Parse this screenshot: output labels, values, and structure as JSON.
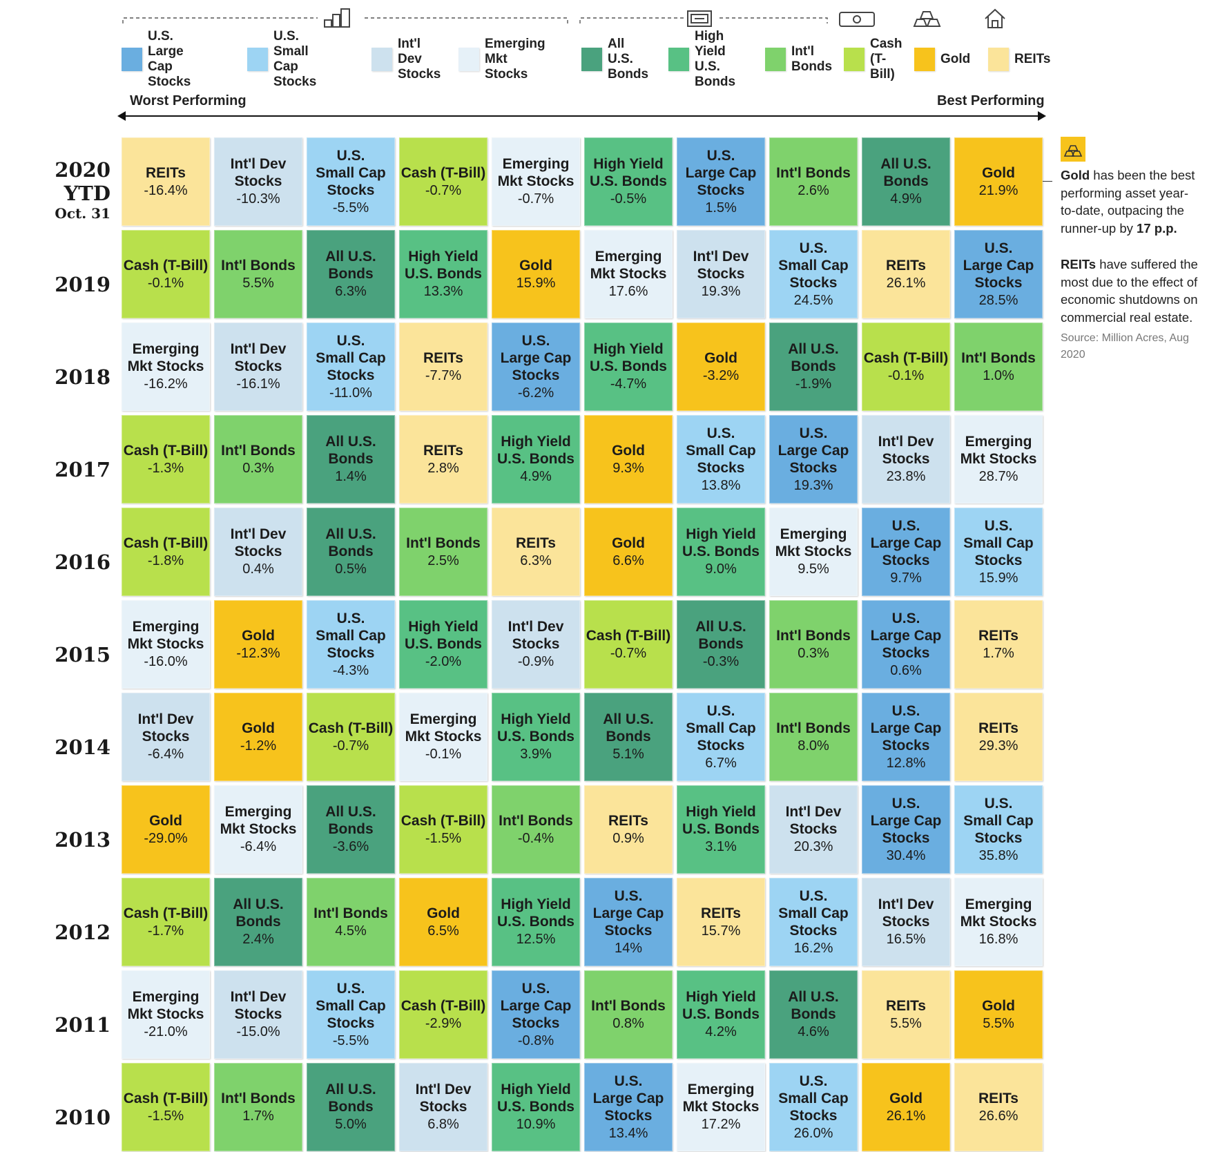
{
  "legend": [
    {
      "key": "uslarge",
      "label": "U.S. Large Cap\nStocks",
      "color": "#6aaee0"
    },
    {
      "key": "ussmall",
      "label": "U.S. Small Cap\nStocks",
      "color": "#9dd4f3"
    },
    {
      "key": "intldev",
      "label": "Int'l Dev\nStocks",
      "color": "#cde1ee"
    },
    {
      "key": "em",
      "label": "Emerging Mkt\nStocks",
      "color": "#e6f1f8"
    },
    {
      "key": "allbonds",
      "label": "All U.S.\nBonds",
      "color": "#4aa27e"
    },
    {
      "key": "hy",
      "label": "High Yield\nU.S. Bonds",
      "color": "#58c184"
    },
    {
      "key": "intlbonds",
      "label": "Int'l\nBonds",
      "color": "#7fd26c"
    },
    {
      "key": "cash",
      "label": "Cash\n(T-Bill)",
      "color": "#b8e04c"
    },
    {
      "key": "gold",
      "label": "Gold",
      "color": "#f7c31c"
    },
    {
      "key": "reits",
      "label": "REITs",
      "color": "#fbe49a"
    }
  ],
  "header": {
    "worst": "Worst Performing",
    "best": "Best Performing",
    "category_icons": [
      "bar-chart-icon",
      "bond-certificate-icon",
      "cash-bill-icon",
      "gold-bars-icon",
      "house-icon"
    ]
  },
  "chart_data": {
    "type": "table",
    "x_axis": {
      "worst": "Worst Performing",
      "best": "Best Performing"
    },
    "rows": [
      {
        "year": "2020 YTD",
        "subtitle": "Oct. 31",
        "cells": [
          {
            "asset": "reits",
            "name": "REITs",
            "value": "-16.4%"
          },
          {
            "asset": "intldev",
            "name": "Int'l Dev\nStocks",
            "value": "-10.3%"
          },
          {
            "asset": "ussmall",
            "name": "U.S.\nSmall Cap\nStocks",
            "value": "-5.5%"
          },
          {
            "asset": "cash",
            "name": "Cash (T-Bill)",
            "value": "-0.7%"
          },
          {
            "asset": "em",
            "name": "Emerging\nMkt Stocks",
            "value": "-0.7%"
          },
          {
            "asset": "hy",
            "name": "High Yield\nU.S. Bonds",
            "value": "-0.5%"
          },
          {
            "asset": "uslarge",
            "name": "U.S.\nLarge Cap\nStocks",
            "value": "1.5%"
          },
          {
            "asset": "intlbonds",
            "name": "Int'l Bonds",
            "value": "2.6%"
          },
          {
            "asset": "allbonds",
            "name": "All U.S.\nBonds",
            "value": "4.9%"
          },
          {
            "asset": "gold",
            "name": "Gold",
            "value": "21.9%"
          }
        ]
      },
      {
        "year": "2019",
        "subtitle": "",
        "cells": [
          {
            "asset": "cash",
            "name": "Cash (T-Bill)",
            "value": "-0.1%"
          },
          {
            "asset": "intlbonds",
            "name": "Int'l Bonds",
            "value": "5.5%"
          },
          {
            "asset": "allbonds",
            "name": "All U.S.\nBonds",
            "value": "6.3%"
          },
          {
            "asset": "hy",
            "name": "High Yield\nU.S. Bonds",
            "value": "13.3%"
          },
          {
            "asset": "gold",
            "name": "Gold",
            "value": "15.9%"
          },
          {
            "asset": "em",
            "name": "Emerging\nMkt Stocks",
            "value": "17.6%"
          },
          {
            "asset": "intldev",
            "name": "Int'l Dev\nStocks",
            "value": "19.3%"
          },
          {
            "asset": "ussmall",
            "name": "U.S.\nSmall Cap\nStocks",
            "value": "24.5%"
          },
          {
            "asset": "reits",
            "name": "REITs",
            "value": "26.1%"
          },
          {
            "asset": "uslarge",
            "name": "U.S.\nLarge Cap\nStocks",
            "value": "28.5%"
          }
        ]
      },
      {
        "year": "2018",
        "subtitle": "",
        "cells": [
          {
            "asset": "em",
            "name": "Emerging\nMkt Stocks",
            "value": "-16.2%"
          },
          {
            "asset": "intldev",
            "name": "Int'l Dev\nStocks",
            "value": "-16.1%"
          },
          {
            "asset": "ussmall",
            "name": "U.S.\nSmall Cap\nStocks",
            "value": "-11.0%"
          },
          {
            "asset": "reits",
            "name": "REITs",
            "value": "-7.7%"
          },
          {
            "asset": "uslarge",
            "name": "U.S.\nLarge Cap\nStocks",
            "value": "-6.2%"
          },
          {
            "asset": "hy",
            "name": "High Yield\nU.S. Bonds",
            "value": "-4.7%"
          },
          {
            "asset": "gold",
            "name": "Gold",
            "value": "-3.2%"
          },
          {
            "asset": "allbonds",
            "name": "All U.S.\nBonds",
            "value": "-1.9%"
          },
          {
            "asset": "cash",
            "name": "Cash (T-Bill)",
            "value": "-0.1%"
          },
          {
            "asset": "intlbonds",
            "name": "Int'l Bonds",
            "value": "1.0%"
          }
        ]
      },
      {
        "year": "2017",
        "subtitle": "",
        "cells": [
          {
            "asset": "cash",
            "name": "Cash (T-Bill)",
            "value": "-1.3%"
          },
          {
            "asset": "intlbonds",
            "name": "Int'l Bonds",
            "value": "0.3%"
          },
          {
            "asset": "allbonds",
            "name": "All U.S.\nBonds",
            "value": "1.4%"
          },
          {
            "asset": "reits",
            "name": "REITs",
            "value": "2.8%"
          },
          {
            "asset": "hy",
            "name": "High Yield\nU.S. Bonds",
            "value": "4.9%"
          },
          {
            "asset": "gold",
            "name": "Gold",
            "value": "9.3%"
          },
          {
            "asset": "ussmall",
            "name": "U.S.\nSmall Cap\nStocks",
            "value": "13.8%"
          },
          {
            "asset": "uslarge",
            "name": "U.S.\nLarge Cap\nStocks",
            "value": "19.3%"
          },
          {
            "asset": "intldev",
            "name": "Int'l Dev\nStocks",
            "value": "23.8%"
          },
          {
            "asset": "em",
            "name": "Emerging\nMkt Stocks",
            "value": "28.7%"
          }
        ]
      },
      {
        "year": "2016",
        "subtitle": "",
        "cells": [
          {
            "asset": "cash",
            "name": "Cash (T-Bill)",
            "value": "-1.8%"
          },
          {
            "asset": "intldev",
            "name": "Int'l Dev\nStocks",
            "value": "0.4%"
          },
          {
            "asset": "allbonds",
            "name": "All U.S.\nBonds",
            "value": "0.5%"
          },
          {
            "asset": "intlbonds",
            "name": "Int'l Bonds",
            "value": "2.5%"
          },
          {
            "asset": "reits",
            "name": "REITs",
            "value": "6.3%"
          },
          {
            "asset": "gold",
            "name": "Gold",
            "value": "6.6%"
          },
          {
            "asset": "hy",
            "name": "High Yield\nU.S. Bonds",
            "value": "9.0%"
          },
          {
            "asset": "em",
            "name": "Emerging\nMkt Stocks",
            "value": "9.5%"
          },
          {
            "asset": "uslarge",
            "name": "U.S.\nLarge Cap\nStocks",
            "value": "9.7%"
          },
          {
            "asset": "ussmall",
            "name": "U.S.\nSmall Cap\nStocks",
            "value": "15.9%"
          }
        ]
      },
      {
        "year": "2015",
        "subtitle": "",
        "cells": [
          {
            "asset": "em",
            "name": "Emerging\nMkt Stocks",
            "value": "-16.0%"
          },
          {
            "asset": "gold",
            "name": "Gold",
            "value": "-12.3%"
          },
          {
            "asset": "ussmall",
            "name": "U.S.\nSmall Cap\nStocks",
            "value": "-4.3%"
          },
          {
            "asset": "hy",
            "name": "High Yield\nU.S. Bonds",
            "value": "-2.0%"
          },
          {
            "asset": "intldev",
            "name": "Int'l Dev\nStocks",
            "value": "-0.9%"
          },
          {
            "asset": "cash",
            "name": "Cash (T-Bill)",
            "value": "-0.7%"
          },
          {
            "asset": "allbonds",
            "name": "All U.S.\nBonds",
            "value": "-0.3%"
          },
          {
            "asset": "intlbonds",
            "name": "Int'l Bonds",
            "value": "0.3%"
          },
          {
            "asset": "uslarge",
            "name": "U.S.\nLarge Cap\nStocks",
            "value": "0.6%"
          },
          {
            "asset": "reits",
            "name": "REITs",
            "value": "1.7%"
          }
        ]
      },
      {
        "year": "2014",
        "subtitle": "",
        "cells": [
          {
            "asset": "intldev",
            "name": "Int'l Dev\nStocks",
            "value": "-6.4%"
          },
          {
            "asset": "gold",
            "name": "Gold",
            "value": "-1.2%"
          },
          {
            "asset": "cash",
            "name": "Cash (T-Bill)",
            "value": "-0.7%"
          },
          {
            "asset": "em",
            "name": "Emerging\nMkt Stocks",
            "value": "-0.1%"
          },
          {
            "asset": "hy",
            "name": "High Yield\nU.S. Bonds",
            "value": "3.9%"
          },
          {
            "asset": "allbonds",
            "name": "All U.S.\nBonds",
            "value": "5.1%"
          },
          {
            "asset": "ussmall",
            "name": "U.S.\nSmall Cap\nStocks",
            "value": "6.7%"
          },
          {
            "asset": "intlbonds",
            "name": "Int'l Bonds",
            "value": "8.0%"
          },
          {
            "asset": "uslarge",
            "name": "U.S.\nLarge Cap\nStocks",
            "value": "12.8%"
          },
          {
            "asset": "reits",
            "name": "REITs",
            "value": "29.3%"
          }
        ]
      },
      {
        "year": "2013",
        "subtitle": "",
        "cells": [
          {
            "asset": "gold",
            "name": "Gold",
            "value": "-29.0%"
          },
          {
            "asset": "em",
            "name": "Emerging\nMkt Stocks",
            "value": "-6.4%"
          },
          {
            "asset": "allbonds",
            "name": "All U.S.\nBonds",
            "value": "-3.6%"
          },
          {
            "asset": "cash",
            "name": "Cash (T-Bill)",
            "value": "-1.5%"
          },
          {
            "asset": "intlbonds",
            "name": "Int'l Bonds",
            "value": "-0.4%"
          },
          {
            "asset": "reits",
            "name": "REITs",
            "value": "0.9%"
          },
          {
            "asset": "hy",
            "name": "High Yield\nU.S. Bonds",
            "value": "3.1%"
          },
          {
            "asset": "intldev",
            "name": "Int'l Dev\nStocks",
            "value": "20.3%"
          },
          {
            "asset": "uslarge",
            "name": "U.S.\nLarge Cap\nStocks",
            "value": "30.4%"
          },
          {
            "asset": "ussmall",
            "name": "U.S.\nSmall Cap\nStocks",
            "value": "35.8%"
          }
        ]
      },
      {
        "year": "2012",
        "subtitle": "",
        "cells": [
          {
            "asset": "cash",
            "name": "Cash (T-Bill)",
            "value": "-1.7%"
          },
          {
            "asset": "allbonds",
            "name": "All U.S.\nBonds",
            "value": "2.4%"
          },
          {
            "asset": "intlbonds",
            "name": "Int'l Bonds",
            "value": "4.5%"
          },
          {
            "asset": "gold",
            "name": "Gold",
            "value": "6.5%"
          },
          {
            "asset": "hy",
            "name": "High Yield\nU.S. Bonds",
            "value": "12.5%"
          },
          {
            "asset": "uslarge",
            "name": "U.S.\nLarge Cap\nStocks",
            "value": "14%"
          },
          {
            "asset": "reits",
            "name": "REITs",
            "value": "15.7%"
          },
          {
            "asset": "ussmall",
            "name": "U.S.\nSmall Cap\nStocks",
            "value": "16.2%"
          },
          {
            "asset": "intldev",
            "name": "Int'l Dev\nStocks",
            "value": "16.5%"
          },
          {
            "asset": "em",
            "name": "Emerging\nMkt Stocks",
            "value": "16.8%"
          }
        ]
      },
      {
        "year": "2011",
        "subtitle": "",
        "cells": [
          {
            "asset": "em",
            "name": "Emerging\nMkt Stocks",
            "value": "-21.0%"
          },
          {
            "asset": "intldev",
            "name": "Int'l Dev\nStocks",
            "value": "-15.0%"
          },
          {
            "asset": "ussmall",
            "name": "U.S.\nSmall Cap\nStocks",
            "value": "-5.5%"
          },
          {
            "asset": "cash",
            "name": "Cash (T-Bill)",
            "value": "-2.9%"
          },
          {
            "asset": "uslarge",
            "name": "U.S.\nLarge Cap\nStocks",
            "value": "-0.8%"
          },
          {
            "asset": "intlbonds",
            "name": "Int'l Bonds",
            "value": "0.8%"
          },
          {
            "asset": "hy",
            "name": "High Yield\nU.S. Bonds",
            "value": "4.2%"
          },
          {
            "asset": "allbonds",
            "name": "All U.S.\nBonds",
            "value": "4.6%"
          },
          {
            "asset": "reits",
            "name": "REITs",
            "value": "5.5%"
          },
          {
            "asset": "gold",
            "name": "Gold",
            "value": "5.5%"
          }
        ]
      },
      {
        "year": "2010",
        "subtitle": "",
        "cells": [
          {
            "asset": "cash",
            "name": "Cash (T-Bill)",
            "value": "-1.5%"
          },
          {
            "asset": "intlbonds",
            "name": "Int'l Bonds",
            "value": "1.7%"
          },
          {
            "asset": "allbonds",
            "name": "All U.S.\nBonds",
            "value": "5.0%"
          },
          {
            "asset": "intldev",
            "name": "Int'l Dev\nStocks",
            "value": "6.8%"
          },
          {
            "asset": "hy",
            "name": "High Yield\nU.S. Bonds",
            "value": "10.9%"
          },
          {
            "asset": "uslarge",
            "name": "U.S.\nLarge Cap\nStocks",
            "value": "13.4%"
          },
          {
            "asset": "em",
            "name": "Emerging\nMkt Stocks",
            "value": "17.2%"
          },
          {
            "asset": "ussmall",
            "name": "U.S.\nSmall Cap\nStocks",
            "value": "26.0%"
          },
          {
            "asset": "gold",
            "name": "Gold",
            "value": "26.1%"
          },
          {
            "asset": "reits",
            "name": "REITs",
            "value": "26.6%"
          }
        ]
      }
    ]
  },
  "side_note": {
    "icon": "gold-bars-icon",
    "gold_bold": "Gold",
    "gold_text": " has been the best performing asset year-to-date, outpacing the runner-up by ",
    "gold_emph": "17 p.p.",
    "reits_bold": "REITs",
    "reits_text": " have suffered the most due to the effect of economic shutdowns on commercial real estate.",
    "source": "Source: Million Acres, Aug 2020"
  }
}
